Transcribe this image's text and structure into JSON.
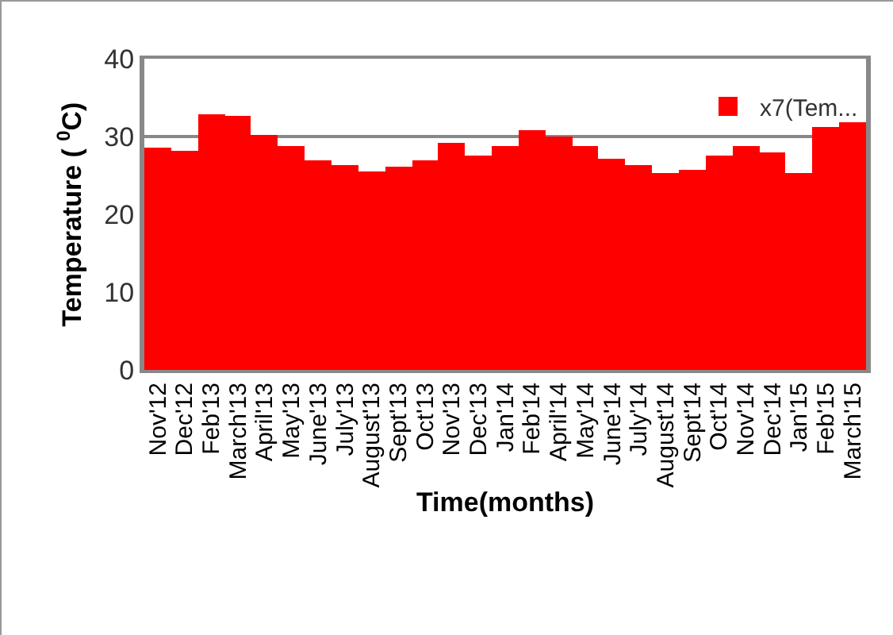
{
  "chart_data": {
    "type": "bar",
    "xlabel": "Time(months)",
    "ylabel": "Temperature ( $^{0}$C)",
    "categories": [
      "Nov'12",
      "Dec'12",
      "Feb'13",
      "March'13",
      "April'13",
      "May'13",
      "June'13",
      "July'13",
      "August'13",
      "Sept'13",
      "Oct'13",
      "Nov'13",
      "Dec'13",
      "Jan'14",
      "Feb'14",
      "April'14",
      "May'14",
      "June'14",
      "July'14",
      "August'14",
      "Sept'14",
      "Oct'14",
      "Nov'14",
      "Dec'14",
      "Jan'15",
      "Feb'15",
      "March'15"
    ],
    "series": [
      {
        "name": "x7(Tem...",
        "color": "#ff0000",
        "values": [
          28.5,
          28.2,
          32.9,
          32.7,
          30.3,
          28.8,
          27.0,
          26.4,
          25.6,
          26.2,
          27.0,
          29.1,
          27.5,
          28.8,
          30.9,
          29.9,
          28.8,
          27.2,
          26.4,
          25.4,
          25.8,
          27.5,
          28.8,
          28.0,
          25.4,
          31.2,
          31.9
        ]
      }
    ],
    "ylim": [
      0,
      40
    ],
    "yticks": [
      0,
      10,
      20,
      30,
      40
    ],
    "grid": "y",
    "legend": "top right"
  }
}
